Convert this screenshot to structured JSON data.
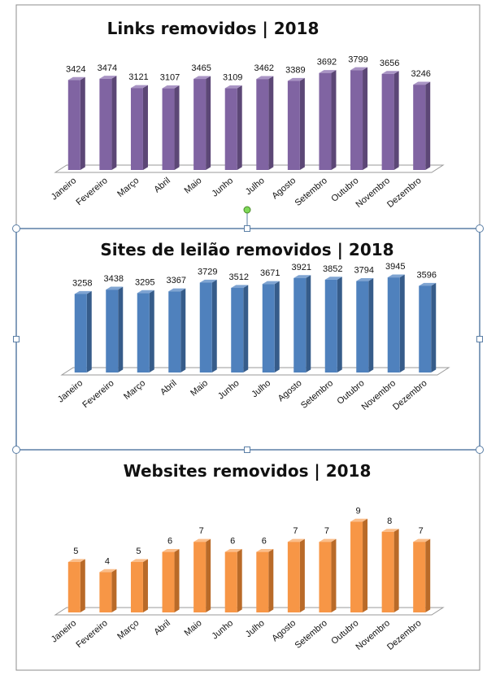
{
  "chart_data": [
    {
      "type": "bar",
      "title": "Links removidos | 2018",
      "categories": [
        "Janeiro",
        "Fevereiro",
        "Março",
        "Abril",
        "Maio",
        "Junho",
        "Julho",
        "Agosto",
        "Setembro",
        "Outubro",
        "Novembro",
        "Dezembro"
      ],
      "values": [
        3424,
        3474,
        3121,
        3107,
        3465,
        3109,
        3462,
        3389,
        3692,
        3799,
        3656,
        3246
      ],
      "ylim": [
        0,
        3900
      ],
      "colors": {
        "front": "#8064A2",
        "side": "#5C4776",
        "top": "#A994C4"
      },
      "grid": false,
      "legend": "none"
    },
    {
      "type": "bar",
      "title": "Sites de leilão removidos | 2018",
      "categories": [
        "Janeiro",
        "Fevereiro",
        "Março",
        "Abril",
        "Maio",
        "Junho",
        "Julho",
        "Agosto",
        "Setembro",
        "Outubro",
        "Novembro",
        "Dezembro"
      ],
      "values": [
        3258,
        3438,
        3295,
        3367,
        3729,
        3512,
        3671,
        3921,
        3852,
        3794,
        3945,
        3596
      ],
      "ylim": [
        0,
        4050
      ],
      "colors": {
        "front": "#4F81BD",
        "side": "#365C8A",
        "top": "#7FA4D2"
      },
      "grid": false,
      "legend": "none"
    },
    {
      "type": "bar",
      "title": "Websites removidos | 2018",
      "categories": [
        "Janeiro",
        "Fevereiro",
        "Março",
        "Abril",
        "Maio",
        "Junho",
        "Julho",
        "Agosto",
        "Setembro",
        "Outubro",
        "Novembro",
        "Dezembro"
      ],
      "values": [
        5,
        4,
        5,
        6,
        7,
        6,
        6,
        7,
        7,
        9,
        8,
        7
      ],
      "ylim": [
        0,
        10
      ],
      "colors": {
        "front": "#F79646",
        "side": "#B96A28",
        "top": "#FBBE8A"
      },
      "grid": false,
      "legend": "none"
    }
  ],
  "selection_handle_color": "#5B7FA6",
  "rotation_handle_color": "#7ED957"
}
